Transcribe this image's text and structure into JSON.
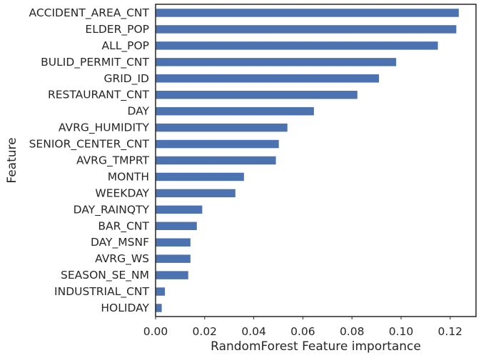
{
  "chart_data": {
    "type": "bar",
    "orientation": "horizontal",
    "categories": [
      "ACCIDENT_AREA_CNT",
      "ELDER_POP",
      "ALL_POP",
      "BULID_PERMIT_CNT",
      "GRID_ID",
      "RESTAURANT_CNT",
      "DAY",
      "AVRG_HUMIDITY",
      "SENIOR_CENTER_CNT",
      "AVRG_TMPRT",
      "MONTH",
      "WEEKDAY",
      "DAY_RAINQTY",
      "BAR_CNT",
      "DAY_MSNF",
      "AVRG_WS",
      "SEASON_SE_NM",
      "INDUSTRIAL_CNT",
      "HOLIDAY"
    ],
    "values": [
      0.1235,
      0.1225,
      0.115,
      0.098,
      0.091,
      0.0822,
      0.0645,
      0.0537,
      0.0502,
      0.049,
      0.036,
      0.0325,
      0.019,
      0.0168,
      0.0142,
      0.0142,
      0.0133,
      0.0038,
      0.0025
    ],
    "xlabel": "RandomForest Feature importance",
    "ylabel": "Feature",
    "xlim": [
      0,
      0.13
    ],
    "xticks": [
      0.0,
      0.02,
      0.04,
      0.06,
      0.08,
      0.1,
      0.12
    ],
    "xtick_labels": [
      "0.00",
      "0.02",
      "0.04",
      "0.06",
      "0.08",
      "0.10",
      "0.12"
    ],
    "grid": false,
    "bar_color": "#4c72b0",
    "frame_color": "#262626"
  }
}
